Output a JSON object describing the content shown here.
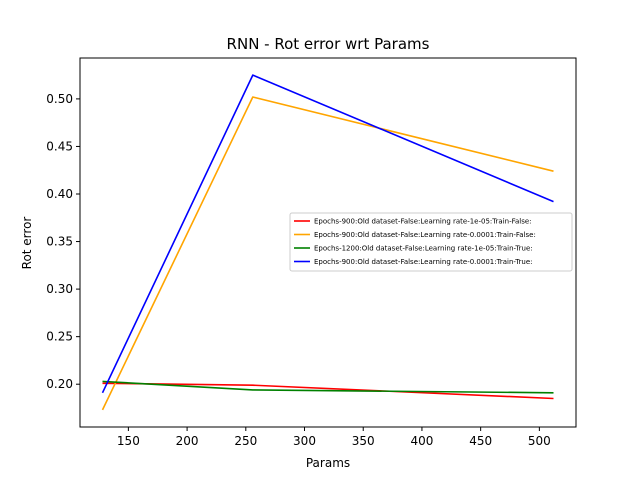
{
  "chart_data": {
    "type": "line",
    "title": "RNN - Rot error wrt Params",
    "xlabel": "Params",
    "ylabel": "Rot error",
    "xlim": [
      108.8,
      531.2
    ],
    "ylim": [
      0.155,
      0.543
    ],
    "xticks": [
      150,
      200,
      250,
      300,
      350,
      400,
      450,
      500
    ],
    "yticks": [
      0.2,
      0.25,
      0.3,
      0.35,
      0.4,
      0.45,
      0.5
    ],
    "x": [
      128,
      256,
      512
    ],
    "grid": false,
    "legend_position": "center-right",
    "series": [
      {
        "name": "Epochs-900:Old dataset-False:Learning rate-1e-05:Train-False:",
        "color": "#ff0000",
        "values": [
          0.201,
          0.199,
          0.185
        ]
      },
      {
        "name": "Epochs-900:Old dataset-False:Learning rate-0.0001:Train-False:",
        "color": "#ffa500",
        "values": [
          0.173,
          0.502,
          0.424
        ]
      },
      {
        "name": "Epochs-1200:Old dataset-False:Learning rate-1e-05:Train-True:",
        "color": "#008000",
        "values": [
          0.203,
          0.194,
          0.191
        ]
      },
      {
        "name": "Epochs-900:Old dataset-False:Learning rate-0.0001:Train-True:",
        "color": "#0000ff",
        "values": [
          0.191,
          0.525,
          0.392
        ]
      }
    ]
  }
}
